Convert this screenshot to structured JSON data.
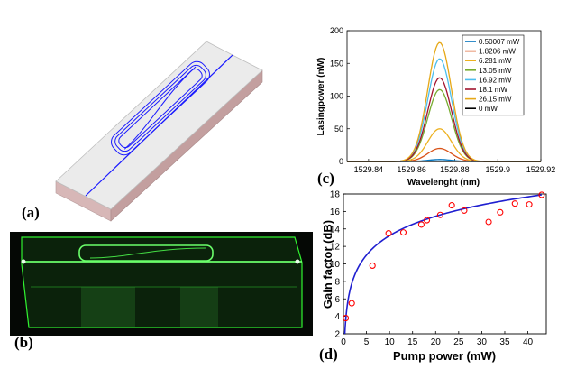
{
  "panels": {
    "a": "(a)",
    "b": "(b)",
    "c": "(c)",
    "d": "(d)"
  },
  "colors": {
    "waveguide": "#1a1aff",
    "chip_top": "#e8e8e8",
    "chip_side": "#c9a5a5",
    "glow": "#33ff33",
    "fit_line": "#1f1fd0",
    "marker": "#ff0000"
  },
  "chart_data": [
    {
      "id": "c",
      "type": "line",
      "title": "",
      "xlabel": "Wavelenght (nm)",
      "ylabel": "Lasingpower (nW)",
      "xlim": [
        1529.83,
        1529.92
      ],
      "ylim": [
        0,
        200
      ],
      "x_ticks": [
        "1529.84",
        "1529.86",
        "1529.88",
        "1529.9",
        "1529.92"
      ],
      "x_tick_values": [
        1529.84,
        1529.86,
        1529.88,
        1529.9,
        1529.92
      ],
      "y_ticks": [
        "0",
        "50",
        "100",
        "150",
        "200"
      ],
      "y_tick_values": [
        0,
        50,
        100,
        150,
        200
      ],
      "peak_center": 1529.873,
      "peak_sigma": 0.0055,
      "legend_position": "top-right",
      "series": [
        {
          "name": "0.50007 mW",
          "peak": 3,
          "color": "#0072bd"
        },
        {
          "name": "1.8206 mW",
          "peak": 20,
          "color": "#d95319"
        },
        {
          "name": "6.281 mW",
          "peak": 50,
          "color": "#edb120"
        },
        {
          "name": "13.05 mW",
          "peak": 110,
          "color": "#77ac30"
        },
        {
          "name": "16.92 mW",
          "peak": 157,
          "color": "#4dbeee"
        },
        {
          "name": "18.1 mW",
          "peak": 128,
          "color": "#a2142f"
        },
        {
          "name": "26.15 mW",
          "peak": 182,
          "color": "#e6a817"
        },
        {
          "name": "0 mW",
          "peak": 0,
          "color": "#000000"
        }
      ]
    },
    {
      "id": "d",
      "type": "scatter",
      "title": "",
      "xlabel": "Pump power (mW)",
      "ylabel": "Gain factor (dB)",
      "xlim": [
        0,
        44
      ],
      "ylim": [
        2,
        18
      ],
      "x_ticks": [
        "0",
        "5",
        "10",
        "15",
        "20",
        "25",
        "30",
        "35",
        "40"
      ],
      "x_tick_values": [
        0,
        5,
        10,
        15,
        20,
        25,
        30,
        35,
        40
      ],
      "y_ticks": [
        "2",
        "4",
        "6",
        "8",
        "10",
        "12",
        "14",
        "16",
        "18"
      ],
      "y_tick_values": [
        2,
        4,
        6,
        8,
        10,
        12,
        14,
        16,
        18
      ],
      "points": [
        {
          "x": 0.5,
          "y": 3.8
        },
        {
          "x": 1.8,
          "y": 5.5
        },
        {
          "x": 6.3,
          "y": 9.8
        },
        {
          "x": 9.8,
          "y": 13.5
        },
        {
          "x": 13.0,
          "y": 13.6
        },
        {
          "x": 16.9,
          "y": 14.5
        },
        {
          "x": 18.1,
          "y": 15.0
        },
        {
          "x": 21.0,
          "y": 15.6
        },
        {
          "x": 23.5,
          "y": 16.7
        },
        {
          "x": 26.2,
          "y": 16.1
        },
        {
          "x": 31.5,
          "y": 14.8
        },
        {
          "x": 34.0,
          "y": 15.9
        },
        {
          "x": 37.2,
          "y": 16.9
        },
        {
          "x": 40.3,
          "y": 16.8
        },
        {
          "x": 43.0,
          "y": 17.9
        }
      ],
      "fit_curve": {
        "type": "logarithmic",
        "x0": 0.3,
        "x1": 43,
        "y_at_x0": 2.0,
        "y_at_x1": 17.9
      }
    }
  ]
}
